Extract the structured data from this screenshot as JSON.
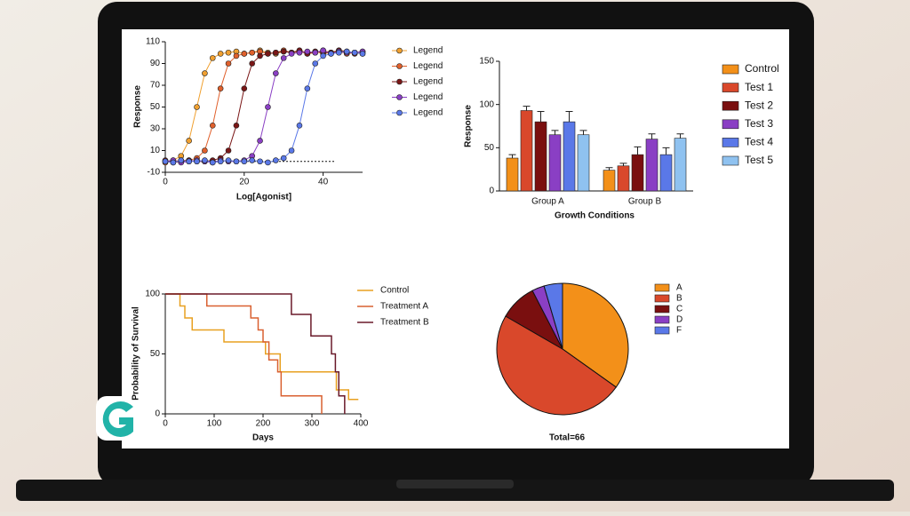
{
  "chart_data": [
    {
      "type": "line",
      "xlabel": "Log[Agonist]",
      "ylabel": "Response",
      "x": [
        0,
        2,
        4,
        6,
        8,
        10,
        12,
        14,
        16,
        18,
        20,
        22,
        24,
        26,
        28,
        30,
        32,
        34,
        36,
        38,
        40,
        42,
        44,
        46,
        48,
        50
      ],
      "xlim": [
        0,
        50
      ],
      "xticks": [
        0,
        20,
        40
      ],
      "ylim": [
        -10,
        110
      ],
      "yticks": [
        -10,
        10,
        30,
        50,
        70,
        90,
        110
      ],
      "baseline": 0,
      "series": [
        {
          "name": "Legend",
          "color": "#f0a030",
          "values": [
            0,
            1,
            5,
            19,
            50,
            81,
            95,
            99,
            100,
            101,
            99,
            100,
            102,
            100,
            99,
            101,
            100,
            102,
            100,
            101,
            99,
            100,
            102,
            101,
            100,
            99
          ]
        },
        {
          "name": "Legend",
          "color": "#e0602c",
          "values": [
            -1,
            0,
            1,
            1,
            3,
            10,
            33,
            67,
            90,
            97,
            99,
            100,
            101,
            99,
            100,
            102,
            100,
            101,
            99,
            100,
            102,
            100,
            101,
            99,
            100,
            101
          ]
        },
        {
          "name": "Legend",
          "color": "#7a1616",
          "values": [
            1,
            -1,
            0,
            1,
            0,
            0,
            1,
            3,
            10,
            33,
            67,
            90,
            97,
            99,
            100,
            101,
            100,
            102,
            99,
            101,
            100,
            100,
            102,
            101,
            99,
            100
          ]
        },
        {
          "name": "Legend",
          "color": "#8a3fc4",
          "values": [
            0,
            1,
            -1,
            0,
            1,
            0,
            -1,
            1,
            0,
            0,
            1,
            5,
            19,
            50,
            81,
            95,
            99,
            100,
            101,
            100,
            102,
            99,
            101,
            100,
            100,
            101
          ]
        },
        {
          "name": "Legend",
          "color": "#5a78e8",
          "values": [
            0,
            -1,
            1,
            0,
            0,
            1,
            -1,
            0,
            1,
            0,
            0,
            1,
            0,
            -1,
            1,
            3,
            10,
            33,
            67,
            90,
            97,
            99,
            100,
            101,
            100,
            99
          ]
        }
      ]
    },
    {
      "type": "bar",
      "xlabel": "Growth Conditions",
      "ylabel": "Response",
      "categories": [
        "Group A",
        "Group B"
      ],
      "ylim": [
        0,
        150
      ],
      "yticks": [
        0,
        50,
        100,
        150
      ],
      "series": [
        {
          "name": "Control",
          "color": "#f39019",
          "values": [
            38,
            24
          ],
          "errors": [
            4,
            3
          ]
        },
        {
          "name": "Test 1",
          "color": "#d9482b",
          "values": [
            93,
            29
          ],
          "errors": [
            5,
            3
          ]
        },
        {
          "name": "Test 2",
          "color": "#7a0f0f",
          "values": [
            80,
            42
          ],
          "errors": [
            12,
            9
          ]
        },
        {
          "name": "Test 3",
          "color": "#8a3fc4",
          "values": [
            65,
            60
          ],
          "errors": [
            5,
            6
          ]
        },
        {
          "name": "Test 4",
          "color": "#5a78e8",
          "values": [
            80,
            42
          ],
          "errors": [
            12,
            8
          ]
        },
        {
          "name": "Test 5",
          "color": "#8fc2f0",
          "values": [
            65,
            61
          ],
          "errors": [
            5,
            5
          ]
        }
      ]
    },
    {
      "type": "step",
      "xlabel": "Days",
      "ylabel": "Probability of Survival",
      "xlim": [
        0,
        400
      ],
      "xticks": [
        0,
        100,
        200,
        300,
        400
      ],
      "ylim": [
        0,
        100
      ],
      "yticks": [
        0,
        50,
        100
      ],
      "series": [
        {
          "name": "Control",
          "color": "#e8a020",
          "x": [
            0,
            30,
            40,
            55,
            120,
            205,
            235,
            350,
            375,
            395
          ],
          "values": [
            100,
            90,
            80,
            70,
            60,
            50,
            35,
            20,
            12,
            12
          ]
        },
        {
          "name": "Treatment A",
          "color": "#d96030",
          "x": [
            0,
            85,
            175,
            190,
            200,
            212,
            230,
            237,
            320
          ],
          "values": [
            100,
            90,
            80,
            70,
            60,
            45,
            35,
            15,
            0
          ]
        },
        {
          "name": "Treatment B",
          "color": "#6a1a2a",
          "x": [
            0,
            258,
            298,
            340,
            348,
            355,
            367
          ],
          "values": [
            100,
            83,
            65,
            50,
            35,
            15,
            0
          ]
        }
      ]
    },
    {
      "type": "pie",
      "annotation": "Total=66",
      "categories": [
        "A",
        "B",
        "C",
        "D",
        "F"
      ],
      "values": [
        23,
        32,
        6,
        2,
        3
      ],
      "colors": [
        "#f39019",
        "#d9482b",
        "#7a0f0f",
        "#8a3fc4",
        "#5a78e8"
      ]
    }
  ]
}
